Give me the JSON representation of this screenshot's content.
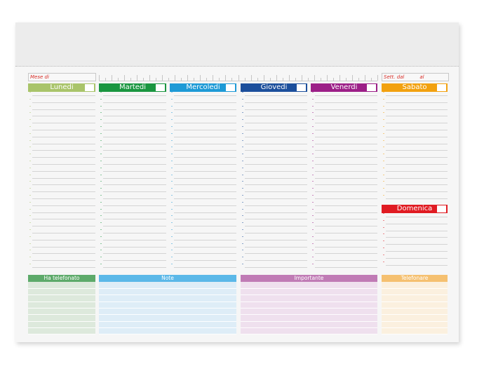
{
  "header": {
    "month_label": "Mese di",
    "week_from_label": "Sett. dal",
    "week_to_label": "al"
  },
  "days": [
    {
      "label": "Lunedi",
      "color": "#a9c46a"
    },
    {
      "label": "Martedi",
      "color": "#1a9640"
    },
    {
      "label": "Mercoledi",
      "color": "#1e9ad6"
    },
    {
      "label": "Giovedi",
      "color": "#1c4f9c"
    },
    {
      "label": "Venerdi",
      "color": "#9c1f87"
    },
    {
      "label": "Sabato",
      "color": "#f2a10f"
    },
    {
      "label": "Domenica",
      "color": "#e01b22"
    }
  ],
  "sections": [
    {
      "label": "Ha telefonato",
      "color": "#5daa6a",
      "bg": "#dde9dc"
    },
    {
      "label": "Note",
      "color": "#5bb8e8",
      "bg": "#deedf7"
    },
    {
      "label": "Importante",
      "color": "#c07bb5",
      "bg": "#efe0ee"
    },
    {
      "label": "Telefonare",
      "color": "#f5c070",
      "bg": "#fbf0df"
    }
  ]
}
